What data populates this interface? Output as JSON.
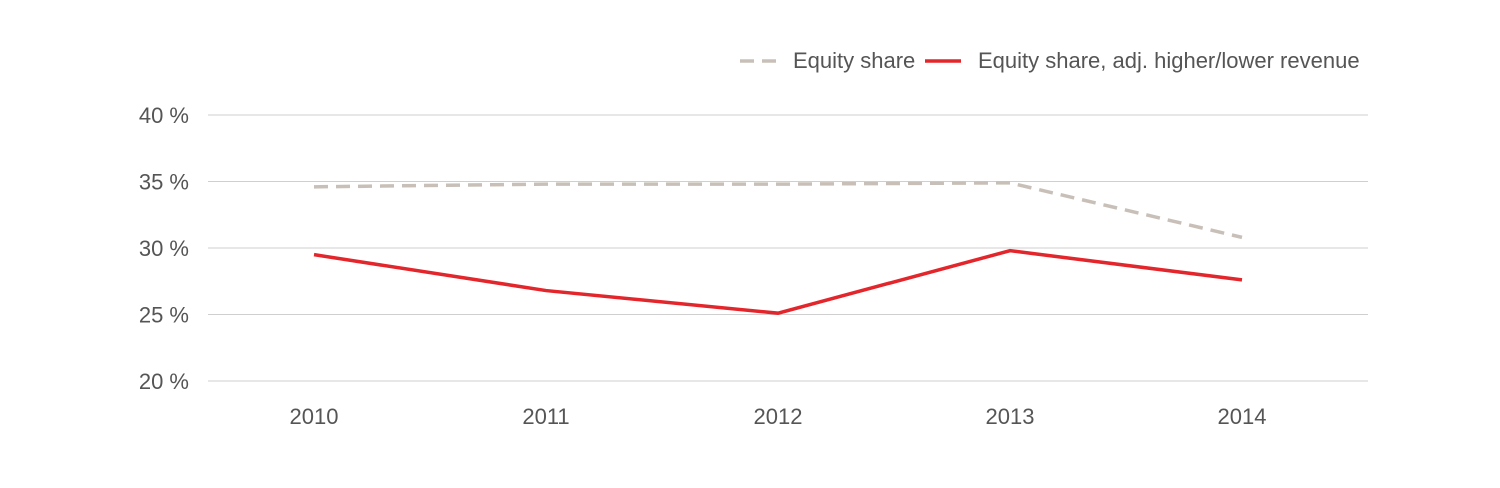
{
  "chart_data": {
    "type": "line",
    "categories": [
      "2010",
      "2011",
      "2012",
      "2013",
      "2014"
    ],
    "series": [
      {
        "name": "Equity share",
        "color": "#c8c0b8",
        "dashed": true,
        "values": [
          34.6,
          34.8,
          34.8,
          34.9,
          30.8
        ]
      },
      {
        "name": "Equity share, adj. higher/lower revenue",
        "color": "#e3262b",
        "dashed": false,
        "values": [
          29.5,
          26.8,
          25.1,
          29.8,
          27.6
        ]
      }
    ],
    "ylim": [
      20,
      40
    ],
    "yticks": [
      {
        "value": 20,
        "label": "20 %"
      },
      {
        "value": 25,
        "label": "25 %"
      },
      {
        "value": 30,
        "label": "30 %"
      },
      {
        "value": 35,
        "label": "35 %"
      },
      {
        "value": 40,
        "label": "40 %"
      }
    ],
    "grid": true,
    "legend": "top-right"
  }
}
